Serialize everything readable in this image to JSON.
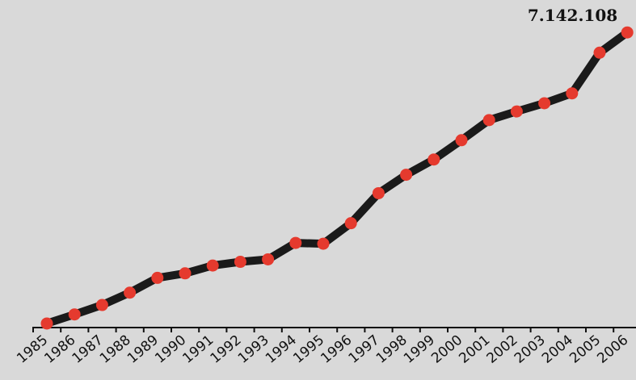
{
  "chart_data": {
    "type": "line",
    "title": "",
    "xlabel": "",
    "ylabel": "",
    "categories": [
      "1985",
      "1986",
      "1987",
      "1988",
      "1989",
      "1990",
      "1991",
      "1992",
      "1993",
      "1994",
      "1995",
      "1996",
      "1997",
      "1998",
      "1999",
      "2000",
      "2001",
      "2002",
      "2003",
      "2004",
      "2005",
      "2006"
    ],
    "series": [
      {
        "values": [
          60000,
          280000,
          510000,
          810000,
          1170000,
          1280000,
          1470000,
          1560000,
          1620000,
          2020000,
          2000000,
          2500000,
          3230000,
          3680000,
          4050000,
          4520000,
          5010000,
          5220000,
          5420000,
          5660000,
          6650000,
          7142108
        ]
      }
    ],
    "ylim": [
      0,
      7500000
    ],
    "grid": false,
    "legend": "none",
    "annotations": [
      {
        "category": "2006",
        "text": "7.142.108"
      }
    ],
    "colors": {
      "background": "#d9d9d9",
      "line": "#1a1a1a",
      "marker": "#e53a2e",
      "axis": "#111111"
    }
  }
}
